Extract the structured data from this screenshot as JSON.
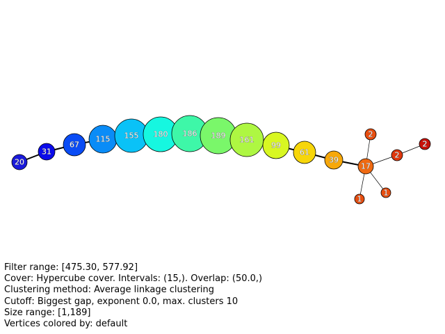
{
  "graph": {
    "nodes": [
      {
        "id": "n20",
        "label": "20",
        "color": "#1a1adb"
      },
      {
        "id": "n31",
        "label": "31",
        "color": "#0b0bea"
      },
      {
        "id": "n67",
        "label": "67",
        "color": "#0a4cf5"
      },
      {
        "id": "n115",
        "label": "115",
        "color": "#0a8cf7"
      },
      {
        "id": "n155",
        "label": "155",
        "color": "#0ac2f7"
      },
      {
        "id": "n180",
        "label": "180",
        "color": "#16f7e0"
      },
      {
        "id": "n186",
        "label": "186",
        "color": "#3ef7a8"
      },
      {
        "id": "n189",
        "label": "189",
        "color": "#7af76a"
      },
      {
        "id": "n161",
        "label": "161",
        "color": "#aef742"
      },
      {
        "id": "n99",
        "label": "99",
        "color": "#d8f722"
      },
      {
        "id": "n61",
        "label": "61",
        "color": "#f7d60a"
      },
      {
        "id": "n39",
        "label": "39",
        "color": "#f7a80a"
      },
      {
        "id": "n17",
        "label": "17",
        "color": "#ef6a12"
      },
      {
        "id": "n2a",
        "label": "2",
        "color": "#e84e10"
      },
      {
        "id": "n2b",
        "label": "2",
        "color": "#e0380e"
      },
      {
        "id": "n2c",
        "label": "2",
        "color": "#c8120a"
      },
      {
        "id": "n1a",
        "label": "1",
        "color": "#e84e10"
      },
      {
        "id": "n1b",
        "label": "1",
        "color": "#e84e10"
      }
    ],
    "edges": [
      [
        "n20",
        "n31"
      ],
      [
        "n31",
        "n67"
      ],
      [
        "n67",
        "n115"
      ],
      [
        "n115",
        "n155"
      ],
      [
        "n155",
        "n180"
      ],
      [
        "n180",
        "n186"
      ],
      [
        "n186",
        "n189"
      ],
      [
        "n189",
        "n161"
      ],
      [
        "n161",
        "n99"
      ],
      [
        "n99",
        "n61"
      ],
      [
        "n61",
        "n39"
      ],
      [
        "n39",
        "n17"
      ],
      [
        "n17",
        "n2a"
      ],
      [
        "n17",
        "n2b"
      ],
      [
        "n2b",
        "n2c"
      ],
      [
        "n17",
        "n1a"
      ],
      [
        "n17",
        "n1b"
      ]
    ]
  },
  "info": {
    "filter_range": "Filter range: [475.30, 577.92]",
    "cover": "Cover: Hypercube cover. Intervals: (15,). Overlap: (50.0,)",
    "clustering": "Clustering method: Average linkage clustering",
    "cutoff": "Cutoff: Biggest gap, exponent 0.0, max. clusters 10",
    "size_range": "Size range: [1,189]",
    "vertex_color": "Vertices colored by: default"
  }
}
